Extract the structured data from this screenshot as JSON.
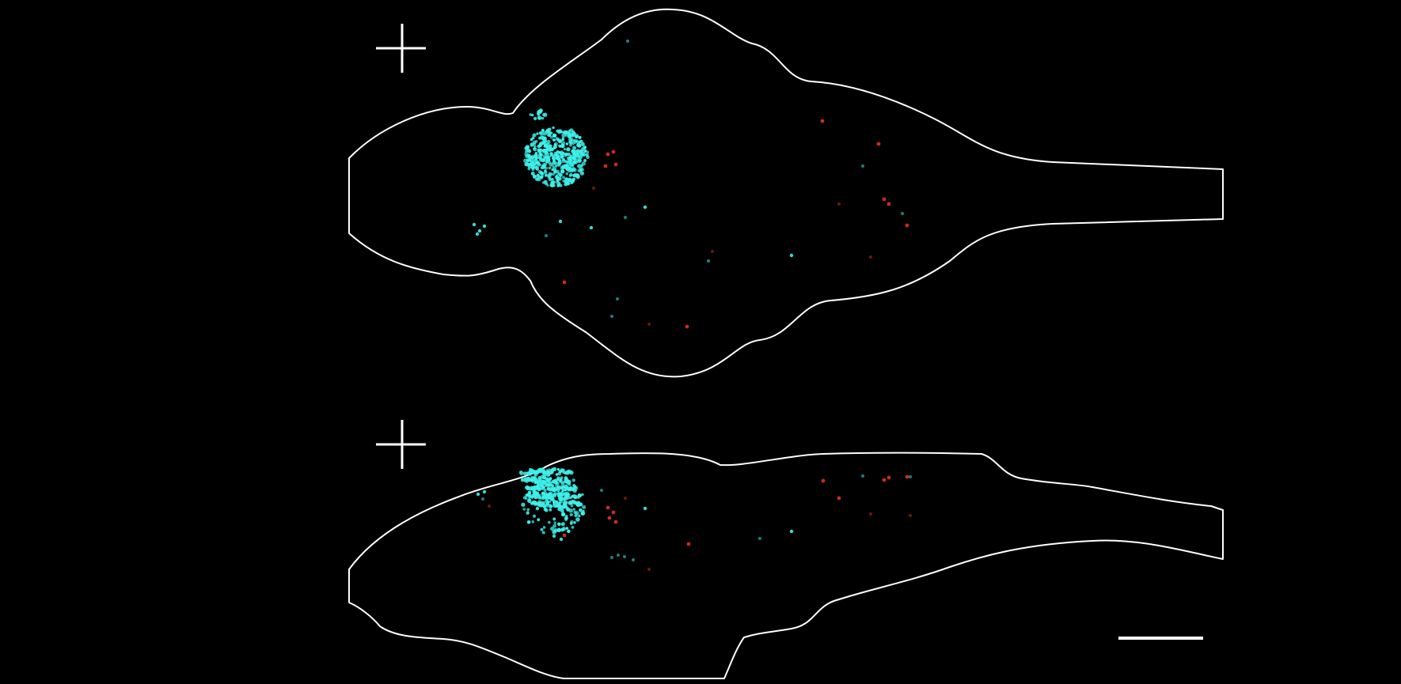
{
  "figure": {
    "description_tag": "zebrafish-brain-projections",
    "colors": {
      "background": "#000000",
      "outline": "#ffffff",
      "cyan_cells": "#3ff0ea",
      "dim_cyan": "#1f8f8a",
      "red_cells": "#e0301e",
      "dim_red": "#7a1a10"
    },
    "views": [
      {
        "name": "dorsal-view",
        "has_orientation_cross": true
      },
      {
        "name": "lateral-view",
        "has_orientation_cross": true
      }
    ],
    "scale_bar": {
      "label": ""
    }
  }
}
